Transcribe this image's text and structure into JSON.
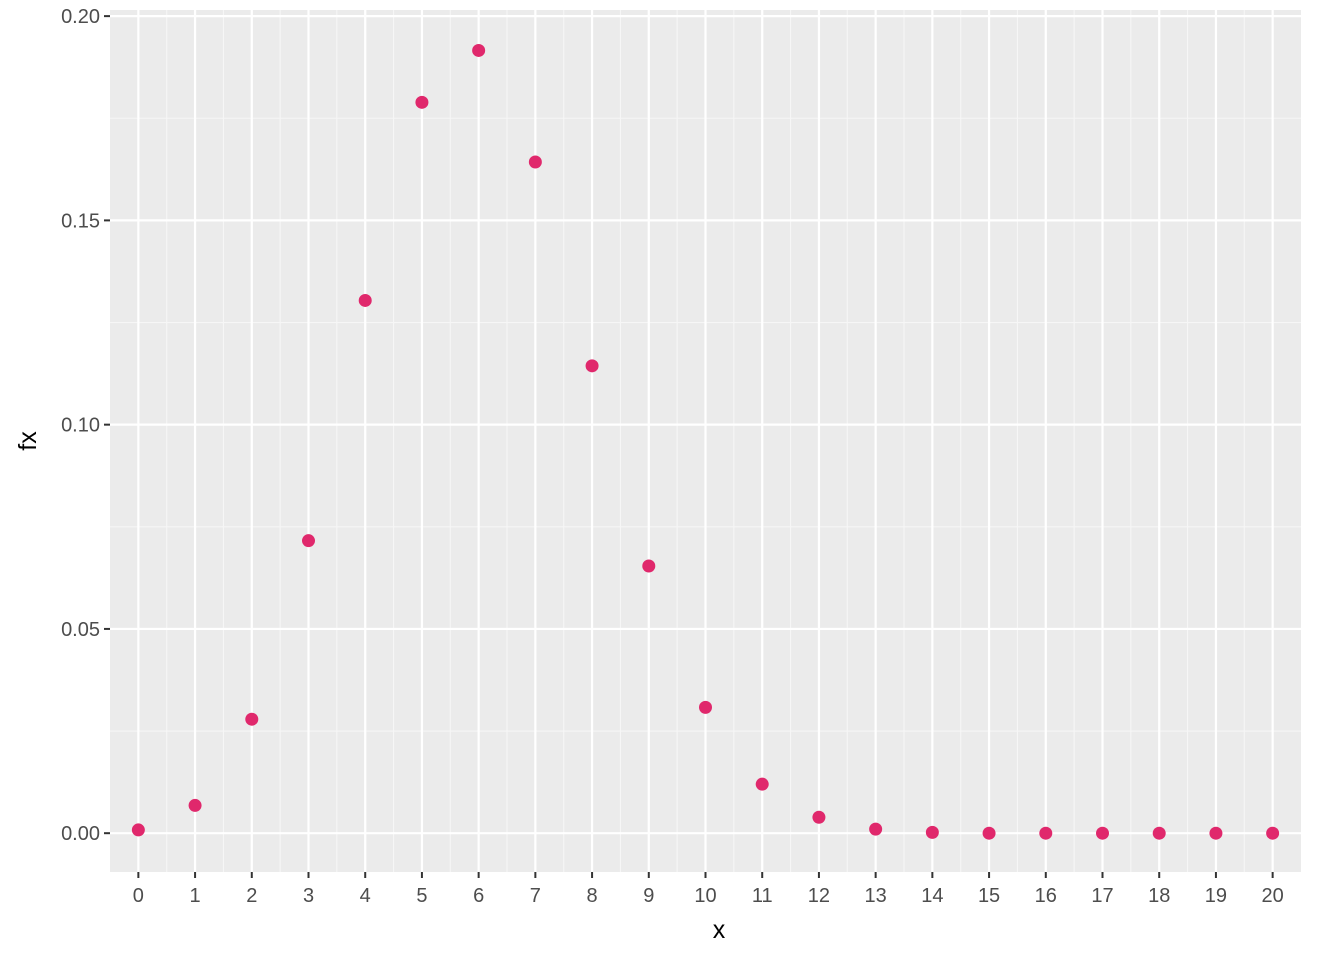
{
  "chart_data": {
    "type": "scatter",
    "xlabel": "x",
    "ylabel": "fx",
    "xlim": [
      -0.5,
      20.5
    ],
    "ylim": [
      -0.0095,
      0.2015
    ],
    "x_ticks": [
      0,
      1,
      2,
      3,
      4,
      5,
      6,
      7,
      8,
      9,
      10,
      11,
      12,
      13,
      14,
      15,
      16,
      17,
      18,
      19,
      20
    ],
    "x_tick_labels": [
      "0",
      "1",
      "2",
      "3",
      "4",
      "5",
      "6",
      "7",
      "8",
      "9",
      "10",
      "11",
      "12",
      "13",
      "14",
      "15",
      "16",
      "17",
      "18",
      "19",
      "20"
    ],
    "y_ticks": [
      0.0,
      0.05,
      0.1,
      0.15,
      0.2
    ],
    "y_tick_labels": [
      "0.00",
      "0.05",
      "0.10",
      "0.15",
      "0.20"
    ],
    "grid": true,
    "series": [
      {
        "color": "#E0286C",
        "x": [
          0,
          1,
          2,
          3,
          4,
          5,
          6,
          7,
          8,
          9,
          10,
          11,
          12,
          13,
          14,
          15,
          16,
          17,
          18,
          19,
          20
        ],
        "y": [
          0.0008,
          0.0068,
          0.0279,
          0.0716,
          0.1304,
          0.1789,
          0.1916,
          0.1643,
          0.1144,
          0.0654,
          0.0308,
          0.012,
          0.0039,
          0.001,
          0.0002,
          0.0,
          0.0,
          0.0,
          0.0,
          0.0,
          0.0
        ]
      }
    ]
  }
}
